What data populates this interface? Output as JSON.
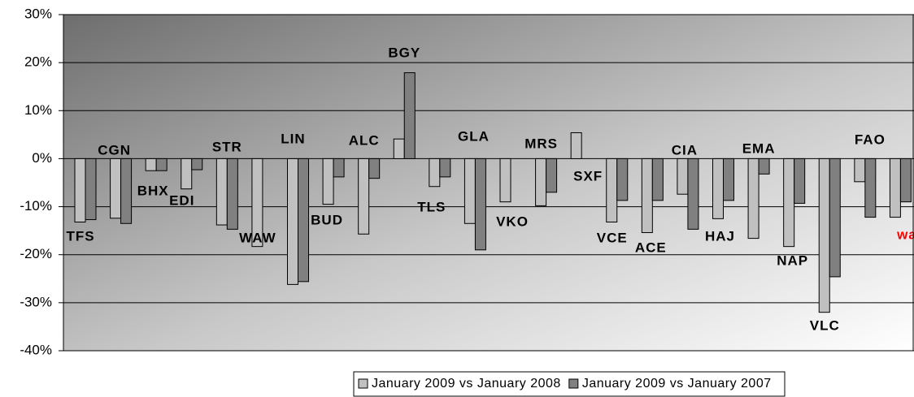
{
  "chart_data": {
    "type": "bar",
    "categories": [
      "TFS",
      "CGN",
      "BHX",
      "EDI",
      "STR",
      "WAW",
      "LIN",
      "BUD",
      "ALC",
      "BGY",
      "TLS",
      "GLA",
      "VKO",
      "MRS",
      "SXF",
      "VCE",
      "ACE",
      "CIA",
      "HAJ",
      "EMA",
      "NAP",
      "VLC",
      "FAO",
      "wa"
    ],
    "label_colors": [
      "#000000",
      "#000000",
      "#000000",
      "#000000",
      "#000000",
      "#000000",
      "#000000",
      "#000000",
      "#000000",
      "#000000",
      "#000000",
      "#000000",
      "#000000",
      "#000000",
      "#000000",
      "#000000",
      "#000000",
      "#000000",
      "#000000",
      "#000000",
      "#000000",
      "#000000",
      "#000000",
      "#ff0000"
    ],
    "series": [
      {
        "name": "January 2009 vs January 2008",
        "color": "#c0c0c0",
        "values": [
          -13.2,
          -12.4,
          -2.5,
          -6.3,
          -13.8,
          -18.3,
          -26.2,
          -9.5,
          -15.7,
          4.1,
          -5.8,
          -13.5,
          -9.0,
          -9.8,
          5.4,
          -13.2,
          -15.4,
          -7.4,
          -12.5,
          -16.6,
          -18.3,
          -32.0,
          -4.8,
          -12.2
        ]
      },
      {
        "name": "January 2009 vs January 2007",
        "color": "#808080",
        "values": [
          -12.7,
          -13.5,
          -2.5,
          -2.3,
          -14.7,
          null,
          -25.6,
          -3.8,
          -4.1,
          17.9,
          -3.8,
          -19.0,
          null,
          -7.0,
          null,
          -8.7,
          -8.7,
          -14.7,
          -8.7,
          -3.2,
          -9.3,
          -24.6,
          -12.2,
          -9.0
        ]
      }
    ],
    "ylim": [
      -40,
      30
    ],
    "yticks": [
      {
        "value": -40,
        "label": "-40%"
      },
      {
        "value": -30,
        "label": "-30%"
      },
      {
        "value": -20,
        "label": "-20%"
      },
      {
        "value": -10,
        "label": "-10%"
      },
      {
        "value": 0,
        "label": "0%"
      },
      {
        "value": 10,
        "label": "10%"
      },
      {
        "value": 20,
        "label": "20%"
      },
      {
        "value": 30,
        "label": "30%"
      }
    ],
    "grid": true,
    "legend": "bottom"
  }
}
